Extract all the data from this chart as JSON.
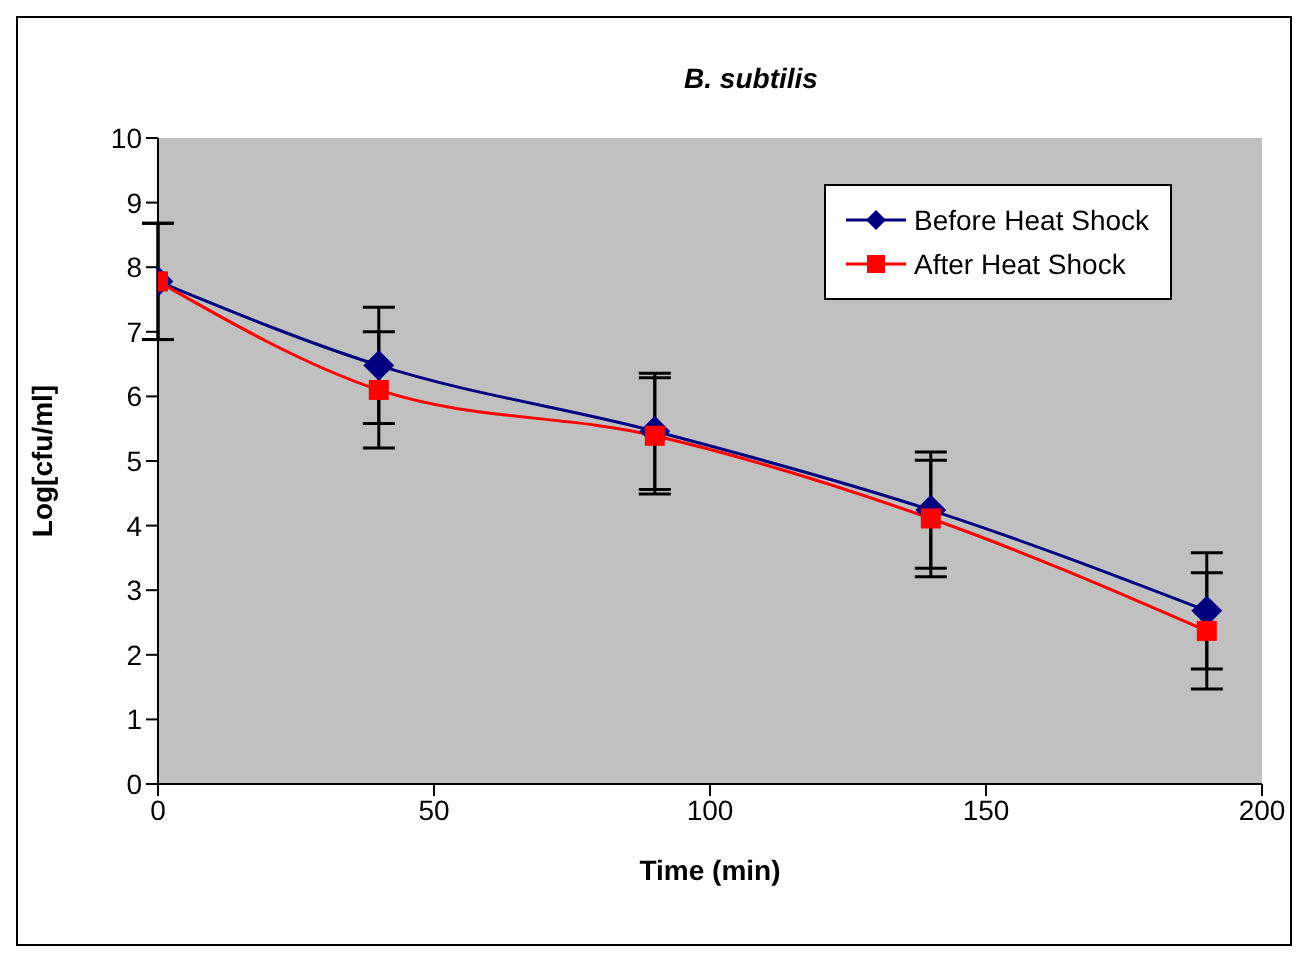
{
  "chart_data": {
    "type": "line",
    "title": "B. subtilis",
    "xlabel": "Time (min)",
    "ylabel": "Log[cfu/ml]",
    "x": [
      0,
      40,
      90,
      140,
      190
    ],
    "series": [
      {
        "name": "Before Heat Shock",
        "color": "#000080",
        "marker": "diamond",
        "values": [
          7.78,
          6.48,
          5.46,
          4.24,
          2.68
        ],
        "errors": [
          0.9,
          0.9,
          0.9,
          0.9,
          0.9
        ]
      },
      {
        "name": "After Heat Shock",
        "color": "#ff0000",
        "marker": "square",
        "values": [
          7.78,
          6.1,
          5.39,
          4.11,
          2.37
        ],
        "errors": [
          0.9,
          0.9,
          0.9,
          0.9,
          0.9
        ]
      }
    ],
    "xlim": [
      0,
      200
    ],
    "xticks": [
      0,
      50,
      100,
      150,
      200
    ],
    "ylim": [
      0,
      10
    ],
    "yticks": [
      0,
      1,
      2,
      3,
      4,
      5,
      6,
      7,
      8,
      9,
      10
    ],
    "grid": false,
    "legend": "top right"
  }
}
